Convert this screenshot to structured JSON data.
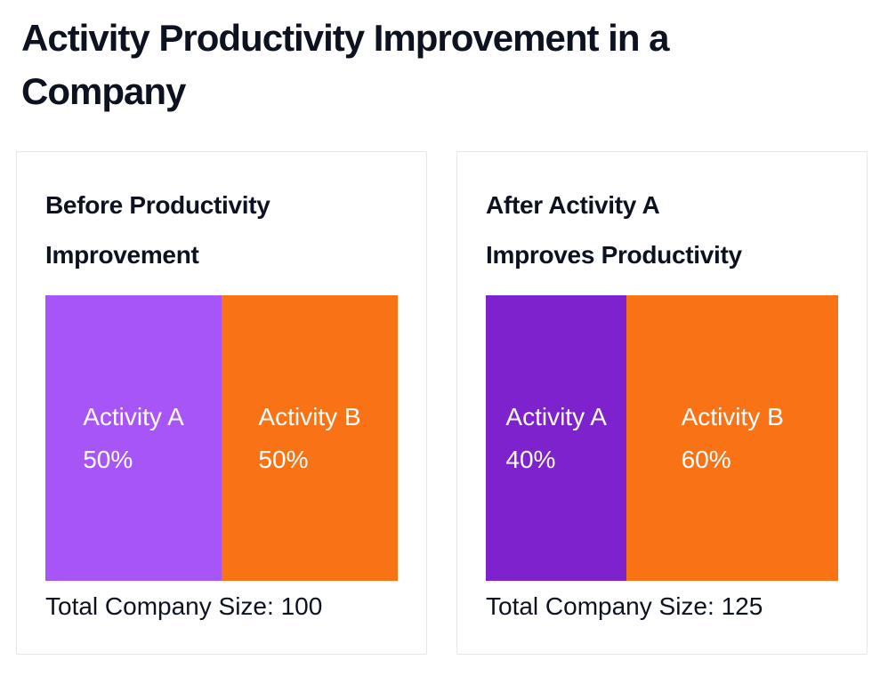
{
  "page": {
    "title": "Activity Productivity Improvement in a\nCompany"
  },
  "colors": {
    "activity_a_before": "#a855f7",
    "activity_a_after": "#7e22ce",
    "activity_b": "#f97316",
    "bar_text": "#ffffff",
    "heading_text": "#0d1220",
    "card_border": "#e5e7eb",
    "background": "#ffffff"
  },
  "chart_data": [
    {
      "type": "bar",
      "title": "Before Productivity\nImprovement",
      "categories": [
        "Activity A",
        "Activity B"
      ],
      "values": [
        50,
        50
      ],
      "total": 100,
      "footer": "Total Company Size: 100",
      "segments": [
        {
          "label": "Activity A",
          "value_label": "50%",
          "percent": 50,
          "color": "#a855f7"
        },
        {
          "label": "Activity B",
          "value_label": "50%",
          "percent": 50,
          "color": "#f97316"
        }
      ]
    },
    {
      "type": "bar",
      "title": "After Activity A\nImproves Productivity",
      "categories": [
        "Activity A",
        "Activity B"
      ],
      "values": [
        40,
        60
      ],
      "total": 125,
      "footer": "Total Company Size: 125",
      "segments": [
        {
          "label": "Activity A",
          "value_label": "40%",
          "percent": 40,
          "color": "#7e22ce"
        },
        {
          "label": "Activity B",
          "value_label": "60%",
          "percent": 60,
          "color": "#f97316"
        }
      ]
    }
  ]
}
